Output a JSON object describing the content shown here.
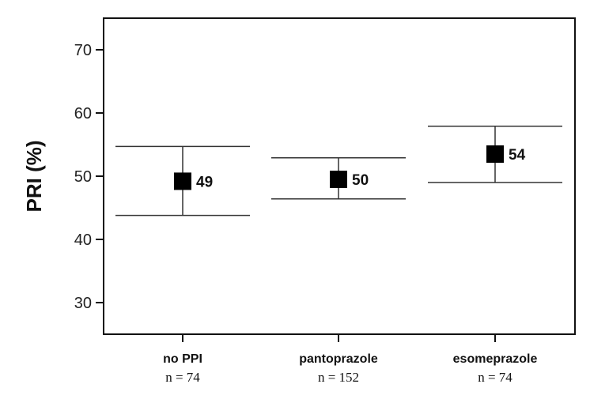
{
  "chart_data": {
    "type": "scatter",
    "ylabel": "PRI (%)",
    "ylim": [
      25,
      75
    ],
    "yticks": [
      30,
      40,
      50,
      60,
      70
    ],
    "grid": false,
    "categories": [
      "no PPI",
      "pantoprazole",
      "esomeprazole"
    ],
    "n_labels": [
      "n = 74",
      "n = 152",
      "n = 74"
    ],
    "values": [
      49.2,
      49.5,
      53.5
    ],
    "value_labels": [
      "49",
      "50",
      "54"
    ],
    "error_low": [
      43.8,
      46.4,
      49.0
    ],
    "error_high": [
      54.7,
      52.9,
      57.9
    ]
  }
}
